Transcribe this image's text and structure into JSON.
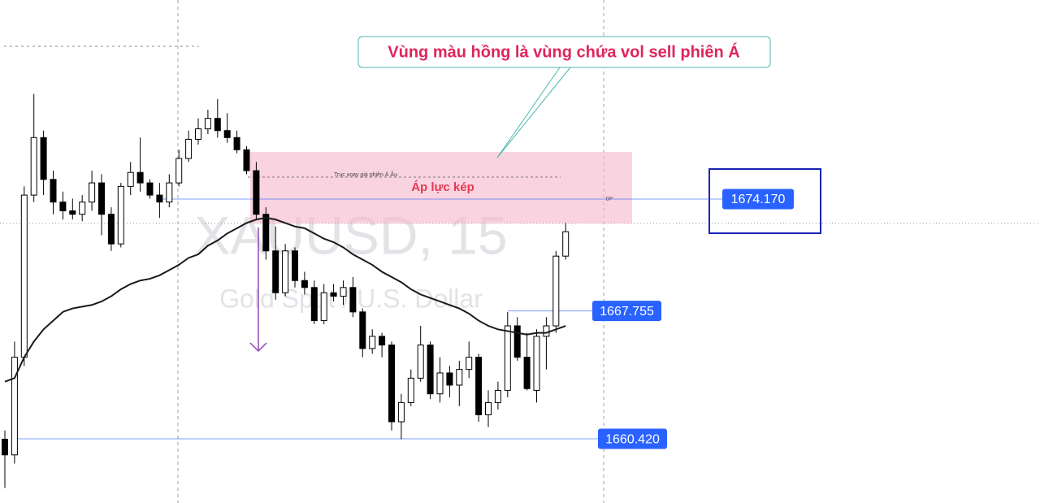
{
  "chart_data": {
    "type": "candlestick",
    "symbol": "XAUUSD, 15",
    "description": "Gold Spot / U.S. Dollar",
    "annotation": "Vùng màu hồng là vùng chứa vol sell phiên Á",
    "zone_label": "Áp lực kép",
    "zone_note": "Trục xoay giá phiên Á Âu",
    "dp_label": "DP",
    "ylim": [
      1656.74,
      1685.59
    ],
    "levels": [
      {
        "value": 1674.17,
        "label": "1674.170"
      },
      {
        "value": 1667.755,
        "label": "1667.755"
      },
      {
        "value": 1660.42,
        "label": "1660.420"
      }
    ],
    "up_color": "#ffffff",
    "down_color": "#000000",
    "ma_color": "#1a1a1a",
    "level_color": "#2962ff",
    "open": [
      1660.4,
      1659.5,
      1665.1,
      1674.4,
      1677.7,
      1675.3,
      1674.0,
      1673.5,
      1673.3,
      1674.0,
      1675.1,
      1673.3,
      1671.6,
      1674.9,
      1675.7,
      1675.1,
      1674.4,
      1674.0,
      1675.1,
      1676.5,
      1677.6,
      1678.2,
      1678.8,
      1678.1,
      1677.7,
      1677.0,
      1675.8,
      1673.3,
      1671.2,
      1668.8,
      1671.2,
      1669.5,
      1669.1,
      1667.2,
      1668.8,
      1668.6,
      1669.1,
      1667.7,
      1665.6,
      1666.3,
      1665.8,
      1661.4,
      1662.5,
      1663.9,
      1665.8,
      1663.0,
      1664.2,
      1663.5,
      1664.4,
      1665.1,
      1661.8,
      1662.5,
      1663.2,
      1666.9,
      1665.1,
      1663.2,
      1666.3,
      1666.9,
      1670.9
    ],
    "high": [
      1660.9,
      1666.0,
      1674.9,
      1680.2,
      1678.1,
      1675.8,
      1674.6,
      1674.2,
      1674.4,
      1675.8,
      1675.6,
      1673.7,
      1675.1,
      1676.3,
      1677.7,
      1675.3,
      1675.1,
      1675.6,
      1677.0,
      1678.1,
      1678.8,
      1679.3,
      1679.9,
      1679.1,
      1678.1,
      1677.2,
      1676.3,
      1673.7,
      1672.6,
      1671.6,
      1671.4,
      1670.0,
      1669.5,
      1669.3,
      1669.3,
      1669.5,
      1669.7,
      1667.9,
      1666.7,
      1666.5,
      1666.0,
      1663.0,
      1664.4,
      1666.9,
      1666.0,
      1665.1,
      1664.6,
      1664.9,
      1666.0,
      1665.3,
      1663.2,
      1663.7,
      1667.7,
      1667.4,
      1666.5,
      1666.7,
      1667.4,
      1671.2,
      1672.8
    ],
    "low": [
      1657.6,
      1659.0,
      1664.6,
      1674.0,
      1674.4,
      1673.3,
      1673.0,
      1673.0,
      1672.9,
      1673.5,
      1672.1,
      1671.2,
      1671.4,
      1674.4,
      1674.6,
      1674.2,
      1673.1,
      1673.7,
      1674.9,
      1676.3,
      1677.3,
      1677.9,
      1677.7,
      1677.4,
      1676.8,
      1675.6,
      1673.0,
      1670.7,
      1668.4,
      1668.6,
      1669.1,
      1668.7,
      1667.0,
      1667.0,
      1668.3,
      1668.1,
      1667.4,
      1665.1,
      1665.3,
      1665.1,
      1660.9,
      1660.4,
      1662.3,
      1663.7,
      1662.7,
      1662.5,
      1662.8,
      1662.3,
      1663.9,
      1661.4,
      1661.1,
      1662.1,
      1662.8,
      1664.9,
      1663.2,
      1662.5,
      1664.4,
      1666.5,
      1670.7
    ],
    "close": [
      1659.5,
      1665.1,
      1674.4,
      1677.7,
      1675.3,
      1674.0,
      1673.5,
      1673.3,
      1674.0,
      1675.1,
      1673.3,
      1671.6,
      1674.9,
      1675.7,
      1675.1,
      1674.4,
      1674.0,
      1675.1,
      1676.5,
      1677.6,
      1678.2,
      1678.8,
      1678.1,
      1677.7,
      1677.0,
      1675.8,
      1673.3,
      1671.2,
      1668.8,
      1671.2,
      1669.5,
      1669.1,
      1667.2,
      1668.8,
      1668.6,
      1669.1,
      1667.7,
      1665.6,
      1666.3,
      1665.8,
      1661.4,
      1662.5,
      1663.9,
      1665.8,
      1663.0,
      1664.2,
      1663.5,
      1664.4,
      1665.1,
      1661.8,
      1662.5,
      1663.2,
      1666.9,
      1665.1,
      1663.3,
      1666.3,
      1666.9,
      1670.9,
      1672.3
    ],
    "ma": [
      1663.7,
      1663.9,
      1665.1,
      1666.0,
      1666.7,
      1667.2,
      1667.7,
      1667.9,
      1668.0,
      1668.1,
      1668.3,
      1668.6,
      1669.0,
      1669.3,
      1669.5,
      1669.6,
      1669.8,
      1670.1,
      1670.4,
      1670.8,
      1671.0,
      1671.5,
      1671.8,
      1672.2,
      1672.5,
      1672.8,
      1673.0,
      1673.1,
      1673.0,
      1672.8,
      1672.6,
      1672.5,
      1672.2,
      1671.9,
      1671.7,
      1671.4,
      1671.0,
      1670.7,
      1670.4,
      1670.0,
      1669.7,
      1669.4,
      1669.0,
      1668.7,
      1668.5,
      1668.3,
      1668.1,
      1667.9,
      1667.6,
      1667.2,
      1666.9,
      1666.7,
      1666.6,
      1666.5,
      1666.4,
      1666.5,
      1666.5,
      1666.7,
      1666.9
    ]
  }
}
